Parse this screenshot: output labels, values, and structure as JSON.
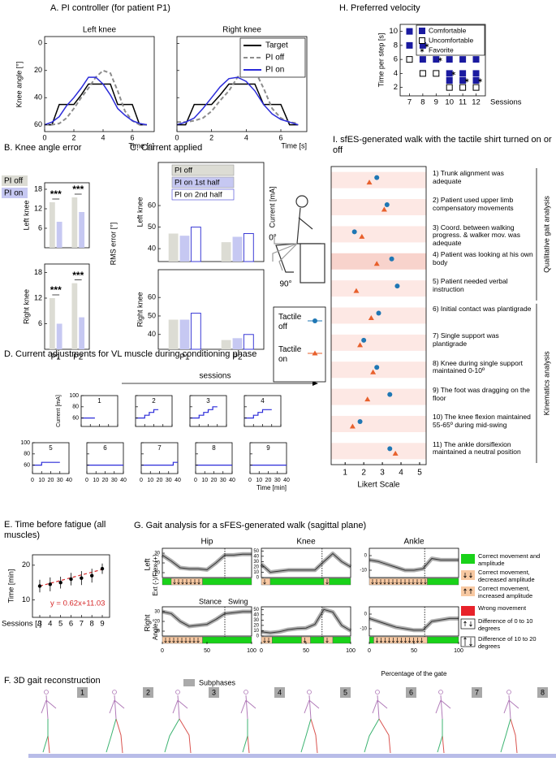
{
  "chart_data": [
    {
      "type": "line",
      "title": "A. PI controller (for patient P1)",
      "ylabel": "Knee angle [°]",
      "xlabel": "Time [s]",
      "x": [
        0,
        0.5,
        1,
        1.5,
        2,
        2.5,
        3,
        3.5,
        4,
        4.5,
        5,
        5.5,
        6,
        6.5,
        7
      ],
      "xlim": [
        0,
        7.5
      ],
      "xticks": [
        0,
        2,
        4,
        6
      ],
      "ylim": [
        65,
        -5
      ],
      "yticks": [
        0,
        20,
        40,
        60
      ],
      "series": [
        {
          "name": "Target",
          "color": "#000000",
          "dash": false
        },
        {
          "name": "PI off",
          "color": "#8c8c8c",
          "dash": true
        },
        {
          "name": "PI on",
          "color": "#2b2bd9",
          "dash": false
        }
      ],
      "panels": [
        {
          "subtitle": "Left knee",
          "values": [
            [
              60,
              60,
              45,
              45,
              45,
              38,
              30,
              30,
              30,
              30,
              45,
              45,
              45,
              60,
              60
            ],
            [
              60,
              60,
              59,
              55,
              48,
              40,
              33,
              25,
              20,
              22,
              35,
              50,
              57,
              60,
              60
            ],
            [
              60,
              58,
              54,
              46,
              40,
              33,
              25,
              25,
              30,
              38,
              48,
              53,
              57,
              59,
              60
            ]
          ]
        },
        {
          "subtitle": "Right knee",
          "values": [
            [
              60,
              60,
              45,
              45,
              45,
              38,
              30,
              30,
              30,
              30,
              45,
              45,
              45,
              60,
              60
            ],
            [
              58,
              58,
              57,
              55,
              50,
              42,
              35,
              25,
              18,
              20,
              33,
              48,
              55,
              58,
              59
            ],
            [
              60,
              58,
              55,
              48,
              40,
              32,
              26,
              25,
              28,
              35,
              45,
              52,
              56,
              58,
              60
            ]
          ]
        }
      ]
    },
    {
      "type": "bar",
      "title": "B. Knee angle error",
      "ylabel": "RMS error [°]",
      "categories": [
        "P1",
        "P2"
      ],
      "series": [
        {
          "name": "PI off",
          "color": "#dcdcd4",
          "edgecolor": "none"
        },
        {
          "name": "PI on",
          "color": "#c6c8f2",
          "edgecolor": "none"
        }
      ],
      "panels": [
        {
          "label": "Left knee",
          "ylim": [
            0,
            20
          ],
          "yticks": [
            6,
            12,
            18
          ],
          "values": [
            [
              14,
              15.5
            ],
            [
              8,
              11
            ]
          ],
          "annotations": [
            "***",
            "***"
          ]
        },
        {
          "label": "Right knee",
          "ylim": [
            0,
            20
          ],
          "yticks": [
            6,
            12,
            18
          ],
          "values": [
            [
              12,
              15.5
            ],
            [
              6,
              7.5
            ]
          ],
          "annotations": [
            "***",
            "***"
          ]
        }
      ]
    },
    {
      "type": "bar",
      "title": "C. Current applied",
      "ylabel": "Current [mA]",
      "categories": [
        "P1",
        "P2"
      ],
      "series": [
        {
          "name": "PI off",
          "color": "#dcdcd4",
          "edgecolor": "none"
        },
        {
          "name": "PI on 1st half",
          "color": "#c6c8f2",
          "edgecolor": "none"
        },
        {
          "name": "PI on 2nd half",
          "color": "#ffffff",
          "edgecolor": "#3b3bd6"
        }
      ],
      "panels": [
        {
          "label": "Left knee",
          "ylim": [
            34,
            80
          ],
          "yticks": [
            40,
            50,
            60
          ],
          "values": [
            [
              47,
              43
            ],
            [
              46,
              45.5
            ],
            [
              50,
              47
            ]
          ]
        },
        {
          "label": "Right knee",
          "ylim": [
            32,
            75
          ],
          "yticks": [
            40,
            50,
            60
          ],
          "values": [
            [
              48,
              37
            ],
            [
              48,
              38
            ],
            [
              51.5,
              40
            ]
          ]
        }
      ]
    },
    {
      "type": "step",
      "title": "D. Current adjustments for VL muscle during conditioning phase",
      "annotation": "sessions",
      "ylabel": "Current [mA]",
      "xlabel": "Time [min]",
      "xlim": [
        0,
        40
      ],
      "xticks": [
        0,
        10,
        20,
        30,
        40
      ],
      "ylim": [
        45,
        100
      ],
      "yticks": [
        60,
        80,
        100
      ],
      "color": "#2b2bd9",
      "panels": [
        {
          "label": "1",
          "x": [
            0,
            15
          ],
          "values": [
            60,
            60
          ]
        },
        {
          "label": "2",
          "x": [
            0,
            10,
            10,
            15,
            15,
            20,
            20,
            25
          ],
          "values": [
            60,
            60,
            65,
            65,
            70,
            70,
            75,
            75
          ]
        },
        {
          "label": "3",
          "x": [
            0,
            10,
            10,
            15,
            15,
            20,
            20,
            25,
            25,
            30
          ],
          "values": [
            60,
            60,
            65,
            65,
            70,
            70,
            75,
            75,
            80,
            80
          ]
        },
        {
          "label": "4",
          "x": [
            0,
            10,
            10,
            15,
            15,
            20,
            20,
            30
          ],
          "values": [
            60,
            60,
            65,
            65,
            70,
            70,
            75,
            75
          ]
        },
        {
          "label": "5",
          "x": [
            0,
            10,
            10,
            30
          ],
          "values": [
            60,
            60,
            65,
            65
          ]
        },
        {
          "label": "6",
          "x": [
            0,
            40
          ],
          "values": [
            60,
            60
          ]
        },
        {
          "label": "7",
          "x": [
            0,
            35,
            35,
            40
          ],
          "values": [
            60,
            60,
            65,
            65
          ]
        },
        {
          "label": "8",
          "x": [
            0,
            40
          ],
          "values": [
            60,
            60
          ]
        },
        {
          "label": "9",
          "x": [
            0,
            40
          ],
          "values": [
            60,
            60
          ]
        }
      ]
    },
    {
      "type": "errorbar",
      "title": "E. Time before fatigue (all muscles)",
      "ylabel": "Time [min]",
      "xlabel": "Sessions [/]",
      "x": [
        3,
        4,
        5,
        6,
        7,
        8,
        9
      ],
      "values": [
        14,
        14.5,
        15,
        16,
        16.3,
        17,
        19
      ],
      "errors": [
        1.8,
        2,
        1.7,
        1.8,
        2,
        2,
        1.5
      ],
      "trend": [
        14,
        14.8,
        15.6,
        16.4,
        17.2,
        18,
        18.8
      ],
      "annotation": "y = 0.62x+11.03",
      "xlim": [
        2.3,
        9.7
      ],
      "xticks": [
        3,
        4,
        5,
        6,
        7,
        8,
        9
      ],
      "ylim": [
        5,
        23
      ],
      "yticks": [
        10,
        20
      ],
      "color": "#000000",
      "trend_color": "#d62728"
    },
    {
      "type": "gait",
      "title": "G. Gait analysis for a sFES-generated walk (sagittal plane)",
      "columns": [
        "Hip",
        "Knee",
        "Ankle"
      ],
      "rows": [
        "Left",
        "Right"
      ],
      "ylabel": "Ext (-)/Flex (+)",
      "ylabel2": "Angle °",
      "xlabel": "Percentage of the gate",
      "stance": "Stance",
      "swing": "Swing",
      "subphases": "Subphases",
      "xlim": [
        0,
        100
      ],
      "xticks": [
        0,
        50,
        100
      ],
      "x": [
        0,
        10,
        20,
        30,
        40,
        50,
        60,
        70,
        80,
        90,
        100
      ],
      "legend": [
        {
          "label": "Correct movement and amplitude",
          "color": "#19d219"
        },
        {
          "label": "Correct movement, decreased amplitude",
          "color": "#f8c9a2"
        },
        {
          "label": "Correct movement, increased amplitude",
          "color": "#f8c9a2"
        },
        {
          "label": "Wrong movement",
          "color": "#e8222a"
        },
        {
          "label": "Difference of 0 to 10 degrees",
          "color": "#ffffff"
        },
        {
          "label": "Difference of 10 to 20 degrees",
          "color": "#ffffff"
        }
      ],
      "panels": [
        {
          "ylim": [
            5,
            35
          ],
          "yticks": [
            10,
            20,
            30
          ],
          "divider": 70,
          "values": [
            28,
            22,
            15,
            14,
            14,
            13,
            20,
            28,
            28,
            29,
            29
          ],
          "strip": [
            {
              "from": 0,
              "to": 10,
              "kind": 0
            },
            {
              "from": 10,
              "to": 45,
              "kind": 1
            },
            {
              "from": 45,
              "to": 100,
              "kind": 0
            }
          ]
        },
        {
          "ylim": [
            0,
            55
          ],
          "yticks": [
            0,
            10,
            20,
            30,
            40,
            50
          ],
          "divider": 68,
          "values": [
            25,
            10,
            12,
            14,
            14,
            14,
            14,
            30,
            45,
            30,
            20
          ],
          "strip": [
            {
              "from": 0,
              "to": 10,
              "kind": 1
            },
            {
              "from": 10,
              "to": 70,
              "kind": 0
            },
            {
              "from": 70,
              "to": 76,
              "kind": 1
            },
            {
              "from": 76,
              "to": 100,
              "kind": 0
            }
          ]
        },
        {
          "ylim": [
            -15,
            5
          ],
          "yticks": [
            -10,
            0
          ],
          "divider": 62,
          "values": [
            -3,
            -4,
            -6,
            -8,
            -10,
            -10,
            -9,
            -2,
            -3,
            -3,
            -3
          ],
          "strip": [
            {
              "from": 0,
              "to": 65,
              "kind": 1
            },
            {
              "from": 65,
              "to": 100,
              "kind": 0
            }
          ]
        },
        {
          "ylim": [
            5,
            35
          ],
          "yticks": [
            10,
            20,
            30
          ],
          "divider": 70,
          "values": [
            30,
            28,
            20,
            15,
            16,
            17,
            22,
            28,
            29,
            30,
            30
          ],
          "strip": [
            {
              "from": 0,
              "to": 45,
              "kind": 1
            },
            {
              "from": 45,
              "to": 100,
              "kind": 0
            }
          ]
        },
        {
          "ylim": [
            0,
            55
          ],
          "yticks": [
            0,
            10,
            20,
            30,
            40,
            50
          ],
          "divider": 68,
          "values": [
            8,
            6,
            8,
            12,
            14,
            15,
            22,
            50,
            45,
            20,
            10
          ],
          "strip": [
            {
              "from": 0,
              "to": 12,
              "kind": 1
            },
            {
              "from": 12,
              "to": 45,
              "kind": 0
            },
            {
              "from": 45,
              "to": 55,
              "kind": 1
            },
            {
              "from": 55,
              "to": 70,
              "kind": 0
            },
            {
              "from": 70,
              "to": 80,
              "kind": 1
            },
            {
              "from": 80,
              "to": 100,
              "kind": 0
            }
          ]
        },
        {
          "ylim": [
            -15,
            5
          ],
          "yticks": [
            -10,
            0
          ],
          "divider": 62,
          "values": [
            -3,
            -5,
            -7,
            -9,
            -10,
            -11,
            -11,
            -5,
            -4,
            -3,
            -3
          ],
          "strip": [
            {
              "from": 0,
              "to": 5,
              "kind": 0
            },
            {
              "from": 5,
              "to": 65,
              "kind": 1
            },
            {
              "from": 65,
              "to": 100,
              "kind": 0
            }
          ]
        }
      ]
    },
    {
      "type": "scatter",
      "title": "H. Preferred velocity",
      "ylabel": "Time per step [s]",
      "xlabel": "Sessions",
      "xlim": [
        6.3,
        12.7
      ],
      "xticks": [
        7,
        8,
        9,
        10,
        11,
        12
      ],
      "ylim": [
        0.8,
        11
      ],
      "yticks": [
        2,
        4,
        6,
        8,
        10
      ],
      "series": [
        {
          "name": "Comfortable",
          "color": "#1a1aa0",
          "marker": "filled-square",
          "x": [
            7,
            7,
            8,
            8,
            9,
            10,
            10,
            10,
            11,
            11,
            11,
            12,
            12,
            12
          ],
          "values": [
            10,
            8,
            8,
            6,
            6,
            6,
            4,
            3,
            6,
            4,
            3,
            6,
            4,
            3
          ]
        },
        {
          "name": "Uncomfortable",
          "color": "#000000",
          "marker": "open-square",
          "x": [
            7,
            8,
            9,
            10,
            11,
            12
          ],
          "values": [
            6,
            4,
            4,
            2,
            2,
            2
          ]
        },
        {
          "name": "Favorite",
          "color": "#000000",
          "marker": "star",
          "x": [
            8,
            9,
            10,
            11,
            12
          ],
          "values": [
            8,
            6,
            4,
            3,
            3
          ]
        }
      ]
    },
    {
      "type": "dot-plot",
      "title": "I. sfES-generated walk with the tactile shirt turned on or off",
      "xlabel": "Likert Scale",
      "xlim": [
        0.25,
        5.35
      ],
      "xticks": [
        1,
        2,
        3,
        4,
        5
      ],
      "items": [
        "1) Trunk alignment was adequate",
        "2) Patient used upper limb compensatory movements",
        "3) Coord. between walking progress. & walker mov. was adequate",
        "4) Patient was looking at his own body",
        "5) Patient needed verbal instruction",
        "6) Initial contact was plantigrade",
        "7) Single support was plantigrade",
        "8) Knee during single support maintained 0-10º",
        "9) The foot was dragging on the floor",
        "10) The knee flexion maintained 55-65º during mid-swing",
        "11) The ankle dorsiflexion maintained a neutral position"
      ],
      "series": [
        {
          "name": "Tactile off",
          "color": "#1f77b4",
          "marker": "circle",
          "values": [
            2.7,
            3.25,
            1.5,
            3.5,
            3.8,
            2.8,
            2.0,
            2.7,
            3.4,
            1.8,
            3.4
          ]
        },
        {
          "name": "Tactile on",
          "color": "#e8602c",
          "marker": "triangle",
          "values": [
            2.3,
            3.1,
            1.9,
            2.7,
            1.6,
            2.4,
            1.8,
            2.5,
            2.2,
            1.4,
            3.7
          ]
        }
      ],
      "groups": [
        {
          "label": "Qualitative gait analysis",
          "from": 0,
          "to": 4
        },
        {
          "label": "Kinematics analysis",
          "from": 5,
          "to": 10
        }
      ],
      "illustration_labels": [
        "0°",
        "90°"
      ]
    }
  ],
  "figure_f": {
    "title": "F. 3D gait reconstruction",
    "frames": [
      "1",
      "2",
      "3",
      "4",
      "5",
      "6",
      "7",
      "8"
    ]
  }
}
